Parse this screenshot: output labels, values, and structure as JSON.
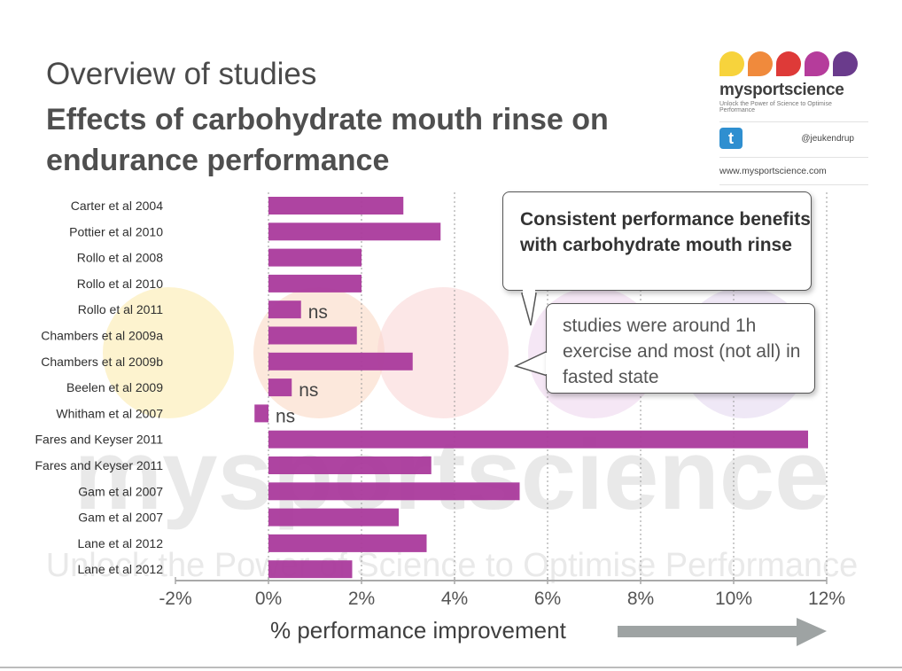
{
  "slide": {
    "title": "Overview of studies",
    "subtitle": "Effects of carbohydrate mouth rinse on endurance performance"
  },
  "logo": {
    "brand": "mysportscience",
    "tagline": "Unlock the Power of Science to Optimise Performance",
    "handle": "@jeukendrup",
    "url": "www.mysportscience.com",
    "twitter_glyph": "t",
    "dot_colors": [
      "#f7d33c",
      "#f08a3c",
      "#de3a38",
      "#b53c9b",
      "#6a3b8c"
    ]
  },
  "watermark": {
    "brand": "mysportscience",
    "tagline": "Unlock the Power of Science to Optimise Performance",
    "circle_colors": [
      "#fbe9a8",
      "#fad6c0",
      "#f9d4d4",
      "#ecd4ec",
      "#e2d6ee"
    ]
  },
  "callouts": {
    "main": "Consistent performance benefits with carbohydrate mouth rinse",
    "note": "studies were around 1h exercise and most (not all) in fasted state"
  },
  "chart_data": {
    "type": "bar",
    "orientation": "horizontal",
    "categories": [
      "Carter et al  2004",
      "Pottier et al 2010",
      "Rollo et al 2008",
      "Rollo et al 2010",
      "Rollo et al 2011",
      "Chambers et al 2009a",
      "Chambers et al 2009b",
      "Beelen et al 2009",
      "Whitham et al 2007",
      "Fares and Keyser 2011",
      "Fares and Keyser 2011",
      "Gam et al 2007",
      "Gam et al 2007",
      "Lane et al 2012",
      "Lane et al 2012"
    ],
    "values": [
      2.9,
      3.7,
      2.0,
      2.0,
      0.7,
      1.9,
      3.1,
      0.5,
      -0.3,
      11.6,
      3.5,
      5.4,
      2.8,
      3.4,
      1.8
    ],
    "annotations": [
      "",
      "",
      "",
      "",
      "ns",
      "",
      "",
      "ns",
      "ns",
      "",
      "",
      "",
      "",
      "",
      ""
    ],
    "xlim": [
      -2,
      12
    ],
    "xticks": [
      -2,
      0,
      2,
      4,
      6,
      8,
      10,
      12
    ],
    "xtick_labels": [
      "-2%",
      "0%",
      "2%",
      "4%",
      "6%",
      "8%",
      "10%",
      "12%"
    ],
    "xlabel": "% performance improvement",
    "grid": "vertical dotted",
    "bar_color": "#aa3a9c",
    "axis_color": "#a9a9a9"
  }
}
